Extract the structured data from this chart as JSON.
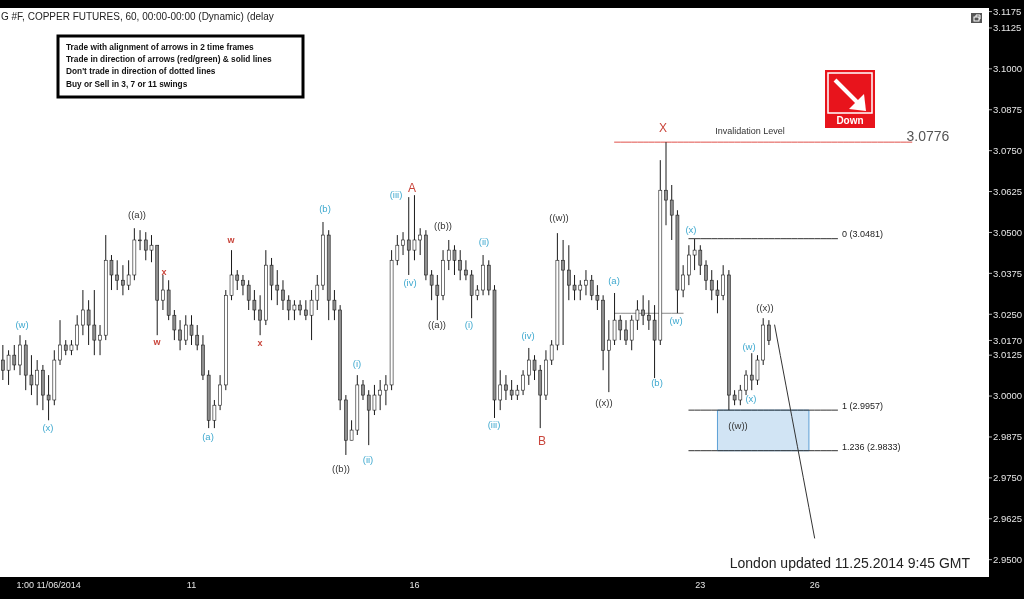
{
  "chart_data": {
    "type": "candlestick",
    "title": "G #F, COPPER FUTURES, 60, 00:00-00:00 (Dynamic) (delay",
    "color": "#1a1a1a",
    "categories": [
      null,
      null,
      null,
      null,
      null,
      null,
      null,
      null,
      "1:00 11/06/2014",
      null,
      null,
      null,
      null,
      null,
      null,
      null,
      null,
      null,
      null,
      null,
      null,
      null,
      null,
      null,
      null,
      null,
      null,
      null,
      null,
      null,
      null,
      null,
      null,
      "11",
      null,
      null,
      null,
      null,
      null,
      null,
      null,
      null,
      null,
      null,
      null,
      null,
      null,
      null,
      null,
      null,
      null,
      null,
      null,
      null,
      null,
      null,
      null,
      null,
      null,
      null,
      null,
      null,
      null,
      null,
      null,
      null,
      null,
      null,
      null,
      null,
      null,
      null,
      "16",
      null,
      null,
      null,
      null,
      null,
      null,
      null,
      null,
      null,
      null,
      null,
      null,
      null,
      null,
      null,
      null,
      null,
      null,
      null,
      null,
      null,
      null,
      null,
      null,
      null,
      null,
      null,
      null,
      null,
      null,
      null,
      null,
      null,
      null,
      null,
      null,
      null,
      null,
      null,
      null,
      null,
      null,
      null,
      null,
      null,
      null,
      null,
      null,
      null,
      "23",
      null,
      null,
      null,
      null,
      null,
      null,
      null,
      null,
      null,
      null,
      null,
      null,
      null,
      null,
      null,
      null,
      null,
      null,
      null,
      "26",
      null,
      null,
      null,
      null,
      null,
      null,
      null,
      null,
      null,
      null,
      null,
      null,
      null,
      null,
      null,
      null,
      null,
      null,
      null,
      null,
      null,
      null,
      null,
      null,
      null,
      null,
      null,
      null,
      null,
      null
    ],
    "ohlc": [
      [
        3.011,
        3.0156,
        3.0049,
        3.0079
      ],
      [
        3.0079,
        3.014,
        3.0034,
        3.0125
      ],
      [
        3.0125,
        3.0156,
        3.0079,
        3.0095
      ],
      [
        3.0095,
        3.0186,
        3.0064,
        3.0156
      ],
      [
        3.0156,
        3.0171,
        3.0018,
        3.0064
      ],
      [
        3.0064,
        3.0125,
        3.0003,
        3.0034
      ],
      [
        3.0034,
        3.011,
        2.9972,
        3.0079
      ],
      [
        3.0079,
        3.0095,
        2.9957,
        3.0003
      ],
      [
        3.0003,
        3.0064,
        2.9926,
        2.9988
      ],
      [
        2.9988,
        3.014,
        2.9972,
        3.011
      ],
      [
        3.011,
        3.0232,
        3.0095,
        3.0156
      ],
      [
        3.0156,
        3.0171,
        3.0125,
        3.014
      ],
      [
        3.014,
        3.0171,
        3.0125,
        3.0156
      ],
      [
        3.0156,
        3.0247,
        3.014,
        3.0217
      ],
      [
        3.0217,
        3.0324,
        3.0186,
        3.0263
      ],
      [
        3.0263,
        3.0293,
        3.0156,
        3.0217
      ],
      [
        3.0217,
        3.0324,
        3.0125,
        3.0171
      ],
      [
        3.0171,
        3.0217,
        3.0125,
        3.0186
      ],
      [
        3.0186,
        3.0492,
        3.0171,
        3.0415
      ],
      [
        3.0415,
        3.0431,
        3.0324,
        3.037
      ],
      [
        3.037,
        3.0415,
        3.0324,
        3.0354
      ],
      [
        3.0354,
        3.04,
        3.0308,
        3.0339
      ],
      [
        3.0339,
        3.0415,
        3.0324,
        3.037
      ],
      [
        3.037,
        3.0513,
        3.0354,
        3.0477
      ],
      [
        3.0477,
        3.0507,
        3.0446,
        3.0477
      ],
      [
        3.0477,
        3.0501,
        3.0415,
        3.0446
      ],
      [
        3.0446,
        3.0492,
        3.0409,
        3.0461
      ],
      [
        3.0461,
        3.0461,
        3.0186,
        3.0293
      ],
      [
        3.0293,
        3.037,
        3.0263,
        3.0324
      ],
      [
        3.0324,
        3.0354,
        3.0232,
        3.0247
      ],
      [
        3.0247,
        3.0263,
        3.0171,
        3.0202
      ],
      [
        3.0202,
        3.0232,
        3.014,
        3.0171
      ],
      [
        3.0171,
        3.0247,
        3.0156,
        3.0217
      ],
      [
        3.0217,
        3.0247,
        3.0156,
        3.0186
      ],
      [
        3.0186,
        3.0217,
        3.014,
        3.0156
      ],
      [
        3.0156,
        3.0186,
        3.0049,
        3.0064
      ],
      [
        3.0064,
        3.0079,
        2.9902,
        2.9926
      ],
      [
        2.9926,
        2.9988,
        2.9902,
        2.9972
      ],
      [
        2.9972,
        3.0064,
        2.9957,
        3.0034
      ],
      [
        3.0034,
        3.0324,
        3.0018,
        3.0308
      ],
      [
        3.0308,
        3.0446,
        3.0293,
        3.037
      ],
      [
        3.037,
        3.0385,
        3.0324,
        3.0354
      ],
      [
        3.0354,
        3.037,
        3.0308,
        3.0339
      ],
      [
        3.0339,
        3.0354,
        3.0263,
        3.0293
      ],
      [
        3.0293,
        3.0324,
        3.0232,
        3.0263
      ],
      [
        3.0263,
        3.0308,
        3.0186,
        3.0232
      ],
      [
        3.0232,
        3.0446,
        3.0217,
        3.04
      ],
      [
        3.04,
        3.0422,
        3.0293,
        3.0339
      ],
      [
        3.0339,
        3.0385,
        3.0278,
        3.0324
      ],
      [
        3.0324,
        3.0354,
        3.0263,
        3.0293
      ],
      [
        3.0293,
        3.0308,
        3.0232,
        3.0263
      ],
      [
        3.0263,
        3.0293,
        3.0232,
        3.0278
      ],
      [
        3.0278,
        3.0293,
        3.0247,
        3.0263
      ],
      [
        3.0263,
        3.0293,
        3.0232,
        3.0247
      ],
      [
        3.0247,
        3.0324,
        3.0171,
        3.0293
      ],
      [
        3.0293,
        3.037,
        3.0263,
        3.0339
      ],
      [
        3.0339,
        3.0532,
        3.0324,
        3.0492
      ],
      [
        3.0492,
        3.0507,
        3.0232,
        3.0293
      ],
      [
        3.0293,
        3.0324,
        3.0232,
        3.0263
      ],
      [
        3.0263,
        3.0278,
        2.9957,
        2.9988
      ],
      [
        2.9988,
        3.0003,
        2.982,
        2.9865
      ],
      [
        2.9865,
        2.9926,
        2.9865,
        2.9896
      ],
      [
        2.9896,
        3.0064,
        2.9881,
        3.0034
      ],
      [
        3.0034,
        3.0049,
        2.9988,
        3.0003
      ],
      [
        3.0003,
        3.0018,
        2.985,
        2.9957
      ],
      [
        2.9957,
        3.0034,
        2.9942,
        3.0003
      ],
      [
        3.0003,
        3.0049,
        2.9957,
        3.0018
      ],
      [
        3.0018,
        3.0064,
        2.9972,
        3.0034
      ],
      [
        3.0034,
        3.0446,
        3.0018,
        3.0415
      ],
      [
        3.0415,
        3.0492,
        3.04,
        3.0461
      ],
      [
        3.0461,
        3.0501,
        3.0431,
        3.0477
      ],
      [
        3.0477,
        3.0608,
        3.037,
        3.0446
      ],
      [
        3.0446,
        3.0614,
        3.0415,
        3.0477
      ],
      [
        3.0477,
        3.0513,
        3.0431,
        3.0492
      ],
      [
        3.0492,
        3.0507,
        3.0354,
        3.037
      ],
      [
        3.037,
        3.0385,
        3.0293,
        3.0339
      ],
      [
        3.0339,
        3.037,
        3.0232,
        3.0308
      ],
      [
        3.0308,
        3.0446,
        3.0293,
        3.0415
      ],
      [
        3.0415,
        3.0477,
        3.0385,
        3.0446
      ],
      [
        3.0446,
        3.0461,
        3.037,
        3.0415
      ],
      [
        3.0415,
        3.0446,
        3.0354,
        3.0385
      ],
      [
        3.0385,
        3.0415,
        3.0354,
        3.037
      ],
      [
        3.037,
        3.0385,
        3.0238,
        3.0308
      ],
      [
        3.0308,
        3.0339,
        3.0293,
        3.0324
      ],
      [
        3.0324,
        3.0431,
        3.0308,
        3.04
      ],
      [
        3.04,
        3.0415,
        3.0308,
        3.0324
      ],
      [
        3.0324,
        3.0339,
        2.9933,
        2.9988
      ],
      [
        2.9988,
        3.0079,
        2.9957,
        3.0034
      ],
      [
        3.0034,
        3.0064,
        2.9988,
        3.0018
      ],
      [
        3.0018,
        3.0049,
        2.9988,
        3.0003
      ],
      [
        3.0003,
        3.0034,
        2.9988,
        3.0018
      ],
      [
        3.0018,
        3.0079,
        3.0003,
        3.0064
      ],
      [
        3.0064,
        3.0147,
        3.0034,
        3.011
      ],
      [
        3.011,
        3.0125,
        3.0049,
        3.0079
      ],
      [
        3.0079,
        3.0095,
        2.9902,
        3.0003
      ],
      [
        3.0003,
        3.014,
        2.9988,
        3.011
      ],
      [
        3.011,
        3.0171,
        3.0095,
        3.0156
      ],
      [
        3.0156,
        3.0498,
        3.014,
        3.0415
      ],
      [
        3.0415,
        3.0477,
        3.0156,
        3.0385
      ],
      [
        3.0385,
        3.0461,
        3.0293,
        3.0339
      ],
      [
        3.0339,
        3.037,
        3.0293,
        3.0324
      ],
      [
        3.0324,
        3.0354,
        3.0293,
        3.0339
      ],
      [
        3.0339,
        3.0385,
        3.0308,
        3.0354
      ],
      [
        3.0354,
        3.037,
        3.0293,
        3.0308
      ],
      [
        3.0308,
        3.0339,
        3.0263,
        3.0293
      ],
      [
        3.0293,
        3.0308,
        3.0079,
        3.014
      ],
      [
        3.014,
        3.0232,
        3.0012,
        3.0171
      ],
      [
        3.0171,
        3.0315,
        3.0156,
        3.0232
      ],
      [
        3.0232,
        3.0247,
        3.0171,
        3.0202
      ],
      [
        3.0202,
        3.0232,
        3.0156,
        3.0171
      ],
      [
        3.0171,
        3.0247,
        3.014,
        3.0232
      ],
      [
        3.0232,
        3.0293,
        3.0202,
        3.0263
      ],
      [
        3.0263,
        3.0308,
        3.0217,
        3.0247
      ],
      [
        3.0247,
        3.0293,
        3.0202,
        3.0232
      ],
      [
        3.0232,
        3.0278,
        3.0055,
        3.0171
      ],
      [
        3.0171,
        3.0721,
        3.0156,
        3.0629
      ],
      [
        3.0629,
        3.0776,
        3.0522,
        3.0599
      ],
      [
        3.0599,
        3.0645,
        3.0477,
        3.0553
      ],
      [
        3.0553,
        3.0568,
        3.0253,
        3.0324
      ],
      [
        3.0324,
        3.04,
        3.0302,
        3.037
      ],
      [
        3.037,
        3.0461,
        3.0339,
        3.0431
      ],
      [
        3.0431,
        3.0481,
        3.0385,
        3.0446
      ],
      [
        3.0446,
        3.0461,
        3.037,
        3.04
      ],
      [
        3.04,
        3.0415,
        3.0324,
        3.0354
      ],
      [
        3.0354,
        3.0385,
        3.0293,
        3.0324
      ],
      [
        3.0324,
        3.0354,
        3.0253,
        3.0308
      ],
      [
        3.0308,
        3.04,
        3.0293,
        3.037
      ],
      [
        3.037,
        3.0385,
        2.9957,
        3.0003
      ],
      [
        3.0003,
        3.0018,
        2.9972,
        2.9988
      ],
      [
        2.9988,
        3.0034,
        2.9972,
        3.0018
      ],
      [
        3.0018,
        3.0079,
        3.0003,
        3.0064
      ],
      [
        3.0064,
        3.0131,
        3.0018,
        3.0049
      ],
      [
        3.0049,
        3.0125,
        3.0034,
        3.011
      ],
      [
        3.011,
        3.0238,
        3.0095,
        3.0217
      ],
      [
        3.0217,
        3.0232,
        3.0156,
        3.017
      ],
      null,
      null,
      null,
      null,
      null,
      null,
      null,
      null,
      null,
      null,
      null,
      null,
      null,
      null,
      null,
      null,
      null,
      null,
      null,
      null,
      null,
      null,
      null,
      null,
      null,
      null,
      null,
      null,
      null,
      null,
      null,
      null,
      null,
      null,
      null,
      null,
      null,
      null
    ],
    "series": [
      {
        "type": "line",
        "color": "#e0504a",
        "values": [
          null,
          null,
          null,
          null,
          null,
          null,
          null,
          null,
          null,
          null,
          null,
          null,
          null,
          null,
          null,
          null,
          null,
          null,
          null,
          null,
          null,
          null,
          null,
          null,
          null,
          null,
          null,
          null,
          null,
          null,
          null,
          null,
          null,
          null,
          null,
          null,
          null,
          null,
          null,
          null,
          null,
          null,
          null,
          null,
          null,
          null,
          null,
          null,
          null,
          null,
          null,
          null,
          null,
          null,
          null,
          null,
          null,
          null,
          null,
          null,
          null,
          null,
          null,
          null,
          null,
          null,
          null,
          null,
          null,
          null,
          null,
          null,
          null,
          null,
          null,
          null,
          null,
          null,
          null,
          null,
          null,
          null,
          null,
          null,
          null,
          null,
          null,
          null,
          null,
          null,
          null,
          null,
          null,
          null,
          null,
          null,
          null,
          null,
          null,
          null,
          null,
          null,
          null,
          null,
          null,
          null,
          null,
          3.0776,
          3.0776,
          3.0776,
          3.0776,
          3.0776,
          3.0776,
          3.0776,
          3.0776,
          3.0776,
          3.0776,
          3.0776,
          3.0776,
          3.0776,
          3.0776,
          3.0776,
          3.0776,
          3.0776,
          3.0776,
          3.0776,
          3.0776,
          3.0776,
          3.0776,
          3.0776,
          3.0776,
          3.0776,
          3.0776,
          3.0776,
          3.0776,
          3.0776,
          3.0776,
          3.0776,
          3.0776,
          3.0776,
          3.0776,
          3.0776,
          3.0776,
          3.0776,
          3.0776,
          3.0776,
          3.0776,
          3.0776,
          3.0776,
          3.0776,
          3.0776,
          3.0776,
          3.0776,
          3.0776,
          3.0776,
          3.0776,
          3.0776,
          3.0776,
          3.0776,
          3.0776,
          null,
          null,
          null,
          null,
          null,
          null,
          null,
          null,
          null,
          null,
          null,
          null,
          null
        ]
      },
      {
        "type": "line",
        "color": "#333333",
        "values": [
          null,
          null,
          null,
          null,
          null,
          null,
          null,
          null,
          null,
          null,
          null,
          null,
          null,
          null,
          null,
          null,
          null,
          null,
          null,
          null,
          null,
          null,
          null,
          null,
          null,
          null,
          null,
          null,
          null,
          null,
          null,
          null,
          null,
          null,
          null,
          null,
          null,
          null,
          null,
          null,
          null,
          null,
          null,
          null,
          null,
          null,
          null,
          null,
          null,
          null,
          null,
          null,
          null,
          null,
          null,
          null,
          null,
          null,
          null,
          null,
          null,
          null,
          null,
          null,
          null,
          null,
          null,
          null,
          null,
          null,
          null,
          null,
          null,
          null,
          null,
          null,
          null,
          null,
          null,
          null,
          null,
          null,
          null,
          null,
          null,
          null,
          null,
          null,
          null,
          null,
          null,
          null,
          null,
          null,
          null,
          null,
          null,
          null,
          null,
          null,
          null,
          null,
          null,
          null,
          null,
          null,
          null,
          null,
          null,
          null,
          null,
          null,
          null,
          null,
          null,
          null,
          null,
          null,
          null,
          null,
          3.0481,
          3.0481,
          3.0481,
          3.0481,
          3.0481,
          3.0481,
          3.0481,
          3.0481,
          3.0481,
          3.0481,
          3.0481,
          3.0481,
          3.0481,
          3.0481,
          3.0481,
          3.0481,
          3.0481,
          3.0481,
          3.0481,
          3.0481,
          3.0481,
          3.0481,
          3.0481,
          3.0481,
          3.0481,
          3.0481,
          3.0481,
          null,
          null,
          null,
          null,
          null,
          null,
          null,
          null,
          null,
          null,
          null,
          null,
          null,
          null,
          null,
          null,
          null,
          null,
          null,
          null,
          null,
          null,
          null,
          null,
          null,
          null
        ]
      },
      {
        "type": "line",
        "color": "#333333",
        "values": [
          null,
          null,
          null,
          null,
          null,
          null,
          null,
          null,
          null,
          null,
          null,
          null,
          null,
          null,
          null,
          null,
          null,
          null,
          null,
          null,
          null,
          null,
          null,
          null,
          null,
          null,
          null,
          null,
          null,
          null,
          null,
          null,
          null,
          null,
          null,
          null,
          null,
          null,
          null,
          null,
          null,
          null,
          null,
          null,
          null,
          null,
          null,
          null,
          null,
          null,
          null,
          null,
          null,
          null,
          null,
          null,
          null,
          null,
          null,
          null,
          null,
          null,
          null,
          null,
          null,
          null,
          null,
          null,
          null,
          null,
          null,
          null,
          null,
          null,
          null,
          null,
          null,
          null,
          null,
          null,
          null,
          null,
          null,
          null,
          null,
          null,
          null,
          null,
          null,
          null,
          null,
          null,
          null,
          null,
          null,
          null,
          null,
          null,
          null,
          null,
          null,
          null,
          null,
          null,
          null,
          null,
          null,
          null,
          null,
          null,
          null,
          null,
          null,
          null,
          null,
          null,
          null,
          null,
          null,
          null,
          2.9957,
          2.9957,
          2.9957,
          2.9957,
          2.9957,
          2.9957,
          2.9957,
          2.9957,
          2.9957,
          2.9957,
          2.9957,
          2.9957,
          2.9957,
          2.9957,
          2.9957,
          2.9957,
          2.9957,
          2.9957,
          2.9957,
          2.9957,
          2.9957,
          2.9957,
          2.9957,
          2.9957,
          2.9957,
          2.9957,
          2.9957,
          null,
          null,
          null,
          null,
          null,
          null,
          null,
          null,
          null,
          null,
          null,
          null,
          null,
          null,
          null,
          null,
          null,
          null,
          null,
          null,
          null,
          null,
          null,
          null,
          null,
          null
        ],
        "lower": [
          null,
          null,
          null,
          null,
          null,
          null,
          null,
          null,
          null,
          null,
          null,
          null,
          null,
          null,
          null,
          null,
          null,
          null,
          null,
          null,
          null,
          null,
          null,
          null,
          null,
          null,
          null,
          null,
          null,
          null,
          null,
          null,
          null,
          null,
          null,
          null,
          null,
          null,
          null,
          null,
          null,
          null,
          null,
          null,
          null,
          null,
          null,
          null,
          null,
          null,
          null,
          null,
          null,
          null,
          null,
          null,
          null,
          null,
          null,
          null,
          null,
          null,
          null,
          null,
          null,
          null,
          null,
          null,
          null,
          null,
          null,
          null,
          null,
          null,
          null,
          null,
          null,
          null,
          null,
          null,
          null,
          null,
          null,
          null,
          null,
          null,
          null,
          null,
          null,
          null,
          null,
          null,
          null,
          null,
          null,
          null,
          null,
          null,
          null,
          null,
          null,
          null,
          null,
          null,
          null,
          null,
          null,
          null,
          null,
          null,
          null,
          null,
          null,
          null,
          null,
          null,
          null,
          null,
          null,
          null,
          null,
          null,
          null,
          null,
          null,
          2.9833,
          2.9833,
          2.9833,
          2.9833,
          2.9833,
          2.9833,
          2.9833,
          2.9833,
          2.9833,
          2.9833,
          2.9833,
          2.9833,
          2.9833,
          2.9833,
          2.9833,
          2.9833,
          2.9833,
          null,
          null,
          null,
          null,
          null,
          null,
          null,
          null,
          null,
          null,
          null,
          null,
          null,
          null,
          null,
          null,
          null,
          null,
          null,
          null,
          null,
          null,
          null,
          null,
          null,
          null,
          null,
          null,
          null,
          null,
          null
        ],
        "upper": [
          null,
          null,
          null,
          null,
          null,
          null,
          null,
          null,
          null,
          null,
          null,
          null,
          null,
          null,
          null,
          null,
          null,
          null,
          null,
          null,
          null,
          null,
          null,
          null,
          null,
          null,
          null,
          null,
          null,
          null,
          null,
          null,
          null,
          null,
          null,
          null,
          null,
          null,
          null,
          null,
          null,
          null,
          null,
          null,
          null,
          null,
          null,
          null,
          null,
          null,
          null,
          null,
          null,
          null,
          null,
          null,
          null,
          null,
          null,
          null,
          null,
          null,
          null,
          null,
          null,
          null,
          null,
          null,
          null,
          null,
          null,
          null,
          null,
          null,
          null,
          null,
          null,
          null,
          null,
          null,
          null,
          null,
          null,
          null,
          null,
          null,
          null,
          null,
          null,
          null,
          null,
          null,
          null,
          null,
          null,
          null,
          null,
          null,
          null,
          null,
          null,
          null,
          null,
          null,
          null,
          null,
          null,
          null,
          null,
          null,
          null,
          null,
          null,
          null,
          null,
          null,
          null,
          null,
          null,
          null,
          null,
          null,
          null,
          null,
          null,
          2.9957,
          2.9957,
          2.9957,
          2.9957,
          2.9957,
          2.9957,
          2.9957,
          2.9957,
          2.9957,
          2.9957,
          2.9957,
          2.9957,
          2.9957,
          2.9957,
          2.9957,
          2.9957,
          2.9957,
          null,
          null,
          null,
          null,
          null,
          null,
          null,
          null,
          null,
          null,
          null,
          null,
          null,
          null,
          null,
          null,
          null,
          null,
          null,
          null,
          null,
          null,
          null,
          null,
          null,
          null,
          null,
          null,
          null,
          null,
          null
        ]
      },
      {
        "type": "line",
        "color": "#333333",
        "values": [
          null,
          null,
          null,
          null,
          null,
          null,
          null,
          null,
          null,
          null,
          null,
          null,
          null,
          null,
          null,
          null,
          null,
          null,
          null,
          null,
          null,
          null,
          null,
          null,
          null,
          null,
          null,
          null,
          null,
          null,
          null,
          null,
          null,
          null,
          null,
          null,
          null,
          null,
          null,
          null,
          null,
          null,
          null,
          null,
          null,
          null,
          null,
          null,
          null,
          null,
          null,
          null,
          null,
          null,
          null,
          null,
          null,
          null,
          null,
          null,
          null,
          null,
          null,
          null,
          null,
          null,
          null,
          null,
          null,
          null,
          null,
          null,
          null,
          null,
          null,
          null,
          null,
          null,
          null,
          null,
          null,
          null,
          null,
          null,
          null,
          null,
          null,
          null,
          null,
          null,
          null,
          null,
          null,
          null,
          null,
          null,
          null,
          null,
          null,
          null,
          null,
          null,
          null,
          null,
          null,
          null,
          null,
          null,
          null,
          null,
          null,
          null,
          null,
          null,
          null,
          null,
          null,
          null,
          null,
          null,
          2.9833,
          2.9833,
          2.9833,
          2.9833,
          2.9833,
          2.9833,
          2.9833,
          2.9833,
          2.9833,
          2.9833,
          2.9833,
          2.9833,
          2.9833,
          2.9833,
          2.9833,
          2.9833,
          2.9833,
          2.9833,
          2.9833,
          2.9833,
          2.9833,
          2.9833,
          2.9833,
          2.9833,
          2.9833,
          2.9833,
          2.9833,
          null,
          null,
          null,
          null,
          null,
          null,
          null,
          null,
          null,
          null,
          null,
          null,
          null,
          null,
          null,
          null,
          null,
          null,
          null,
          null,
          null,
          null,
          null,
          null,
          null,
          null
        ]
      },
      {
        "type": "line",
        "color": "#8c8c8c",
        "values": [
          null,
          null,
          null,
          null,
          null,
          null,
          null,
          null,
          null,
          null,
          null,
          null,
          null,
          null,
          null,
          null,
          null,
          null,
          null,
          null,
          null,
          null,
          null,
          null,
          null,
          null,
          null,
          null,
          null,
          null,
          null,
          null,
          null,
          null,
          null,
          null,
          null,
          null,
          null,
          null,
          null,
          null,
          null,
          null,
          null,
          null,
          null,
          null,
          null,
          null,
          null,
          null,
          null,
          null,
          null,
          null,
          null,
          null,
          null,
          null,
          null,
          null,
          null,
          null,
          null,
          null,
          null,
          null,
          null,
          null,
          null,
          null,
          null,
          null,
          null,
          null,
          null,
          null,
          null,
          null,
          null,
          null,
          null,
          null,
          null,
          null,
          null,
          null,
          null,
          null,
          null,
          null,
          null,
          null,
          null,
          null,
          null,
          null,
          null,
          null,
          null,
          null,
          null,
          null,
          null,
          null,
          null,
          3.0253,
          3.0253,
          3.0253,
          3.0253,
          3.0253,
          3.0253,
          3.0253,
          3.0253,
          3.0253,
          3.0253,
          3.0253,
          3.0253,
          3.0253,
          null,
          null,
          null,
          null,
          null,
          null,
          null,
          null,
          null,
          null,
          null,
          null,
          null,
          null,
          null,
          null,
          null,
          null,
          null,
          null,
          null,
          null,
          null,
          null,
          null,
          null,
          null,
          null,
          null,
          null,
          null,
          null,
          null,
          null,
          null,
          null,
          null,
          null,
          null,
          null,
          null,
          null,
          null,
          null,
          null,
          null,
          null,
          null,
          null,
          null,
          null,
          null,
          null
        ]
      },
      {
        "type": "line",
        "color": "#333333",
        "values": [
          null,
          null,
          null,
          null,
          null,
          null,
          null,
          null,
          null,
          null,
          null,
          null,
          null,
          null,
          null,
          null,
          null,
          null,
          null,
          null,
          null,
          null,
          null,
          null,
          null,
          null,
          null,
          null,
          null,
          null,
          null,
          null,
          null,
          null,
          null,
          null,
          null,
          null,
          null,
          null,
          null,
          null,
          null,
          null,
          null,
          null,
          null,
          null,
          null,
          null,
          null,
          null,
          null,
          null,
          null,
          null,
          null,
          null,
          null,
          null,
          null,
          null,
          null,
          null,
          null,
          null,
          null,
          null,
          null,
          null,
          null,
          null,
          null,
          null,
          null,
          null,
          null,
          null,
          null,
          null,
          null,
          null,
          null,
          null,
          null,
          null,
          null,
          null,
          null,
          null,
          null,
          null,
          null,
          null,
          null,
          null,
          null,
          null,
          null,
          null,
          null,
          null,
          null,
          null,
          null,
          null,
          null,
          null,
          null,
          null,
          null,
          null,
          null,
          null,
          null,
          null,
          null,
          null,
          null,
          null,
          null,
          null,
          null,
          null,
          null,
          null,
          null,
          null,
          null,
          null,
          null,
          null,
          null,
          null,
          null,
          3.0217,
          3.0124,
          3.0031,
          2.9938,
          2.9845,
          2.9752,
          2.9659,
          2.9566,
          null,
          null,
          null,
          null,
          null,
          null,
          null,
          null,
          null,
          null,
          null,
          null,
          null,
          null,
          null,
          null,
          null,
          null,
          null,
          null,
          null,
          null,
          null,
          null,
          null,
          null,
          null,
          null,
          null,
          null
        ]
      }
    ],
    "ylim": [
      2.9447,
      3.1186
    ],
    "yticks": [
      {
        "value": 2.95,
        "label": "2.9500"
      },
      2.9625,
      {
        "value": 2.975,
        "label": "2.9750"
      },
      2.9875,
      {
        "value": 3,
        "label": "3.0000"
      },
      3.0125,
      {
        "value": 3.017,
        "label": "3.0170"
      },
      {
        "value": 3.025,
        "label": "3.0250"
      },
      3.0375,
      {
        "value": 3.05,
        "label": "3.0500"
      },
      3.0625,
      {
        "value": 3.075,
        "label": "3.0750"
      },
      3.0875,
      {
        "value": 3.1,
        "label": "3.1000"
      },
      3.1125,
      3.1175
    ],
    "annotations": [
      "Trade with alignment of arrows in 2 time frames",
      "Trade in direction of arrows (red/green) & solid lines",
      "Don't trade in direction of dotted lines",
      "Buy or Sell in 3, 7 or 11 swings",
      "Down",
      "London updated 11.25.2014 9:45 GMT",
      "(w)",
      "(x)",
      "((a))",
      "w",
      "x",
      "(a)",
      "w",
      "x",
      "(b)",
      "((b))",
      "(i)",
      "(ii)",
      "(iii)",
      "A",
      "(iv)",
      "((b))",
      "((a))",
      "(ii)",
      "(i)",
      "(iii)",
      "(iv)",
      "B",
      "((w))",
      "(a)",
      "((x))",
      "(b)",
      "X",
      "(w)",
      "(x)",
      "((x))",
      "(w)",
      "(x)",
      "((w))",
      "Invalidation Level",
      "3.0776",
      "0 (3.0481)",
      "1 (2.9957)",
      "1.236 (2.9833)"
    ]
  }
}
